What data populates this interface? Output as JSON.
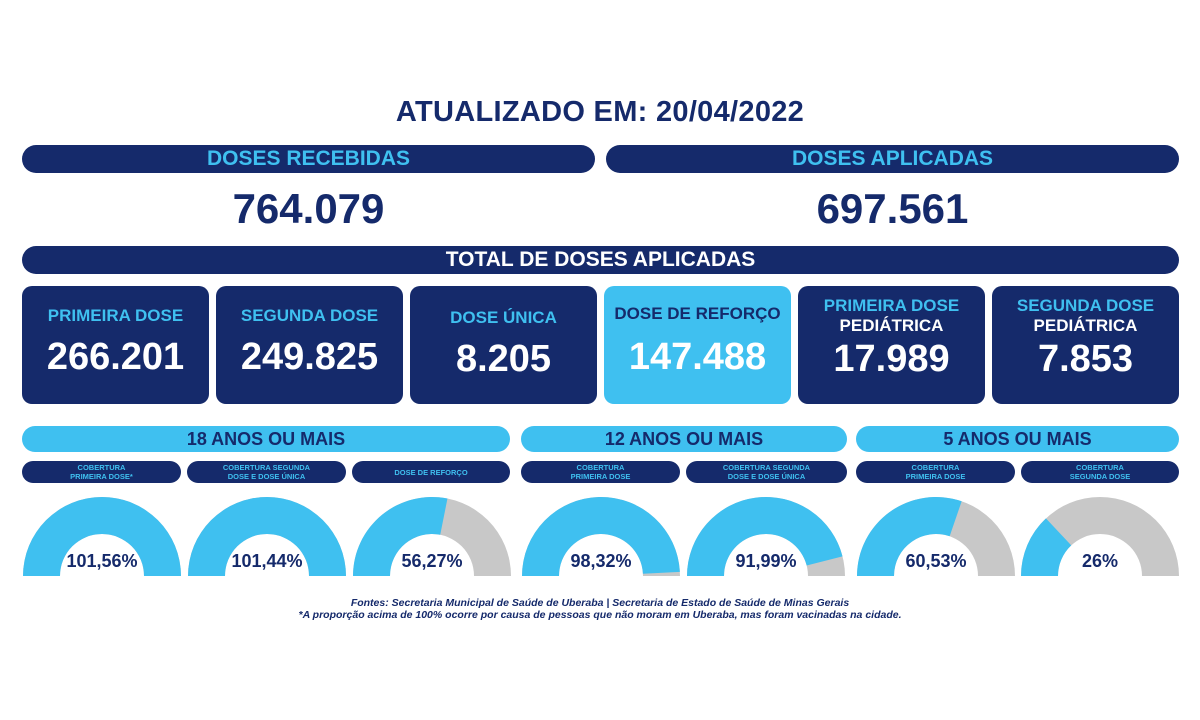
{
  "header": {
    "title": "ATUALIZADO EM: 20/04/2022"
  },
  "doses_recebidas": {
    "label": "DOSES RECEBIDAS",
    "value": "764.079"
  },
  "doses_aplicadas": {
    "label": "DOSES APLICADAS",
    "value": "697.561"
  },
  "total": {
    "label": "TOTAL DE DOSES APLICADAS"
  },
  "cards": [
    {
      "label": "PRIMEIRA DOSE",
      "label2": "",
      "value": "266.201"
    },
    {
      "label": "SEGUNDA DOSE",
      "label2": "",
      "value": "249.825"
    },
    {
      "label": "DOSE ÚNICA",
      "label2": "",
      "value": "8.205"
    },
    {
      "label": "DOSE DE REFORÇO",
      "label2": "",
      "value": "147.488"
    },
    {
      "label": "PRIMEIRA DOSE",
      "label2": "PEDIÁTRICA",
      "value": "17.989"
    },
    {
      "label": "SEGUNDA DOSE",
      "label2": "PEDIÁTRICA",
      "value": "7.853"
    }
  ],
  "groups": [
    {
      "label": "18 ANOS OU MAIS"
    },
    {
      "label": "12 ANOS OU MAIS"
    },
    {
      "label": "5 ANOS OU MAIS"
    }
  ],
  "gauges": [
    {
      "line1": "COBERTURA",
      "line2": "PRIMEIRA DOSE*",
      "text": "101,56%"
    },
    {
      "line1": "COBERTURA SEGUNDA",
      "line2": "DOSE E DOSE ÚNICA",
      "text": "101,44%"
    },
    {
      "line1": "DOSE DE REFORÇO",
      "line2": "",
      "text": "56,27%"
    },
    {
      "line1": "COBERTURA",
      "line2": "PRIMEIRA DOSE",
      "text": "98,32%"
    },
    {
      "line1": "COBERTURA SEGUNDA",
      "line2": "DOSE E DOSE ÚNICA",
      "text": "91,99%"
    },
    {
      "line1": "COBERTURA",
      "line2": "PRIMEIRA DOSE",
      "text": "60,53%"
    },
    {
      "line1": "COBERTURA",
      "line2": "SEGUNDA DOSE",
      "text": "26%"
    }
  ],
  "chart_data": {
    "type": "gauge",
    "max": 100,
    "series": [
      {
        "value": 101.56
      },
      {
        "value": 101.44
      },
      {
        "value": 56.27
      },
      {
        "value": 98.32
      },
      {
        "value": 91.99
      },
      {
        "value": 60.53
      },
      {
        "value": 26
      }
    ]
  },
  "colors": {
    "navy": "#152a6b",
    "cyan": "#3fc0f0",
    "gray": "#c8c8c8"
  },
  "footer": {
    "line1": "Fontes: Secretaria Municipal de Saúde de Uberaba | Secretaria de Estado de Saúde de Minas Gerais",
    "line2": "*A proporção acima de 100% ocorre por causa de pessoas que não moram em Uberaba, mas foram vacinadas na cidade."
  }
}
